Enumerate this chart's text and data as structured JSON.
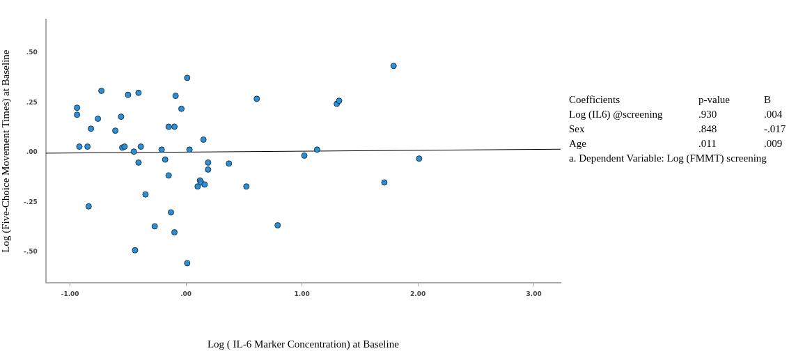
{
  "chart_data": {
    "type": "scatter",
    "xlabel": "Log ( IL-6 Marker Concentration) at Baseline",
    "ylabel": "Log (Five-Choice Movement Times) at Baseline",
    "xlim": [
      -1.21,
      3.23
    ],
    "ylim": [
      -0.654,
      0.668
    ],
    "xticks": [
      {
        "value": -1,
        "label": "-1.00"
      },
      {
        "value": 0,
        "label": ".00"
      },
      {
        "value": 1,
        "label": "1.00"
      },
      {
        "value": 2,
        "label": "2.00"
      },
      {
        "value": 3,
        "label": "3.00"
      }
    ],
    "yticks": [
      {
        "value": -0.5,
        "label": "-.50"
      },
      {
        "value": -0.25,
        "label": "-.25"
      },
      {
        "value": 0,
        "label": ".00"
      },
      {
        "value": 0.25,
        "label": ".25"
      },
      {
        "value": 0.5,
        "label": ".50"
      }
    ],
    "grid": false,
    "legend": false,
    "marker": "circle",
    "series": [
      {
        "color": "#2b8fd6",
        "x": [
          -0.94,
          -0.94,
          -0.92,
          -0.85,
          -0.82,
          -0.76,
          -0.73,
          -0.84,
          -0.61,
          -0.56,
          -0.55,
          -0.53,
          -0.5,
          -0.45,
          -0.41,
          -0.41,
          -0.39,
          -0.44,
          -0.35,
          -0.27,
          -0.21,
          -0.18,
          -0.15,
          -0.15,
          -0.13,
          -0.1,
          -0.1,
          -0.09,
          -0.04,
          0.01,
          0.01,
          0.03,
          0.15,
          0.19,
          0.19,
          0.12,
          0.1,
          0.13,
          0.16,
          0.37,
          0.52,
          0.61,
          0.79,
          1.02,
          1.13,
          1.3,
          1.32,
          1.79,
          1.71,
          2.01
        ],
        "values": [
          0.225,
          0.19,
          0.03,
          0.03,
          0.12,
          0.17,
          0.31,
          -0.27,
          0.11,
          0.18,
          0.025,
          0.03,
          0.29,
          0.005,
          0.3,
          -0.05,
          0.03,
          -0.49,
          -0.21,
          -0.37,
          0.015,
          -0.035,
          0.13,
          -0.115,
          -0.3,
          -0.4,
          0.13,
          0.285,
          0.22,
          0.375,
          -0.555,
          0.015,
          0.065,
          -0.05,
          -0.085,
          -0.14,
          -0.17,
          -0.15,
          -0.16,
          -0.055,
          -0.17,
          0.27,
          -0.365,
          -0.015,
          0.015,
          0.245,
          0.26,
          0.435,
          -0.15,
          -0.03
        ]
      },
      {
        "type": "line",
        "color": "#000000",
        "marker": "none",
        "x": [
          -1.21,
          3.23
        ],
        "values": [
          -0.003,
          0.017
        ]
      }
    ],
    "annotations": [
      "Coefficients",
      "p-value",
      "B",
      "Log (IL6) @screening",
      ".930",
      ".004",
      "Sex",
      ".848",
      "-.017",
      "Age",
      ".011",
      ".009",
      "a. Dependent Variable: Log (FMMT) screening"
    ]
  }
}
